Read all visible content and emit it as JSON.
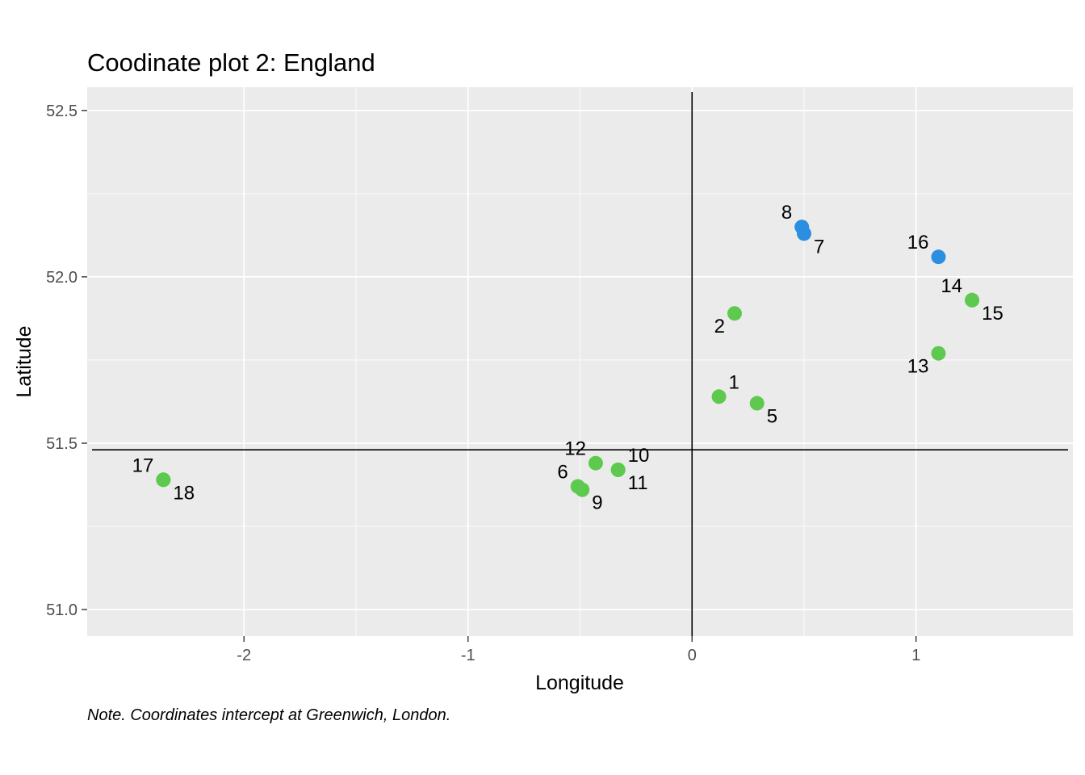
{
  "chart_data": {
    "type": "scatter",
    "title": "Coodinate plot 2: England",
    "xlabel": "Longitude",
    "ylabel": "Latitude",
    "caption": "Note. Coordinates intercept at Greenwich, London.",
    "xlim": [
      -2.7,
      1.7
    ],
    "ylim": [
      50.92,
      52.57
    ],
    "x_ticks": [
      -2,
      -1,
      0,
      1
    ],
    "x_tick_labels": [
      "-2",
      "-1",
      "0",
      "1"
    ],
    "y_ticks": [
      51.0,
      51.5,
      52.0,
      52.5
    ],
    "y_tick_labels": [
      "51.0",
      "51.5",
      "52.0",
      "52.5"
    ],
    "reference_lines": {
      "longitude": 0,
      "latitude": 51.48
    },
    "grid": true,
    "legend": "none",
    "colors": {
      "green": "#5ec94f",
      "blue": "#2b8ee0",
      "panel": "#ebebeb",
      "grid": "#ffffff",
      "reference": "#000000"
    },
    "points": [
      {
        "label": "1",
        "x": 0.12,
        "y": 51.64,
        "color": "green",
        "label_pos": "upper-right"
      },
      {
        "label": "2",
        "x": 0.19,
        "y": 51.89,
        "color": "green",
        "label_pos": "lower-left"
      },
      {
        "label": "5",
        "x": 0.29,
        "y": 51.62,
        "color": "green",
        "label_pos": "lower-right"
      },
      {
        "label": "6",
        "x": -0.51,
        "y": 51.37,
        "color": "green",
        "label_pos": "upper-left"
      },
      {
        "label": "7",
        "x": 0.5,
        "y": 52.13,
        "color": "blue",
        "label_pos": "lower-right"
      },
      {
        "label": "8",
        "x": 0.49,
        "y": 52.15,
        "color": "blue",
        "label_pos": "upper-left"
      },
      {
        "label": "9",
        "x": -0.49,
        "y": 51.36,
        "color": "green",
        "label_pos": "lower-right"
      },
      {
        "label": "10",
        "x": -0.33,
        "y": 51.42,
        "color": "green",
        "label_pos": "upper-right"
      },
      {
        "label": "11",
        "x": -0.33,
        "y": 51.42,
        "color": "green",
        "label_pos": "lower-right"
      },
      {
        "label": "12",
        "x": -0.43,
        "y": 51.44,
        "color": "green",
        "label_pos": "upper-left"
      },
      {
        "label": "13",
        "x": 1.1,
        "y": 51.77,
        "color": "green",
        "label_pos": "lower-left"
      },
      {
        "label": "14",
        "x": 1.25,
        "y": 51.93,
        "color": "green",
        "label_pos": "upper-left"
      },
      {
        "label": "15",
        "x": 1.25,
        "y": 51.93,
        "color": "green",
        "label_pos": "lower-right"
      },
      {
        "label": "16",
        "x": 1.1,
        "y": 52.06,
        "color": "blue",
        "label_pos": "upper-left"
      },
      {
        "label": "17",
        "x": -2.36,
        "y": 51.39,
        "color": "green",
        "label_pos": "upper-left"
      },
      {
        "label": "18",
        "x": -2.36,
        "y": 51.39,
        "color": "green",
        "label_pos": "lower-right"
      }
    ]
  }
}
